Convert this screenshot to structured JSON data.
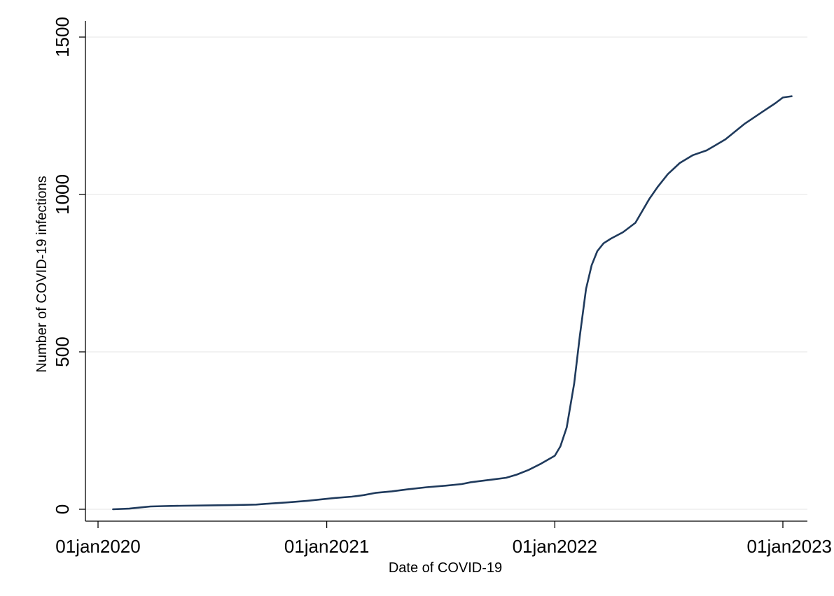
{
  "chart_data": {
    "type": "line",
    "title": "",
    "xlabel": "Date of COVID-19",
    "ylabel": "Number of COVID-19 infections",
    "xlim": [
      "2019-12-01",
      "2023-01-15"
    ],
    "ylim": [
      -40,
      1520
    ],
    "grid": true,
    "legend": "none",
    "x_ticks": [
      "2020-01-01",
      "2021-01-01",
      "2022-01-01",
      "2023-01-01"
    ],
    "x_tick_labels": [
      "01jan2020",
      "01jan2021",
      "01jan2022",
      "01jan2023"
    ],
    "y_ticks": [
      0,
      500,
      1000,
      1500
    ],
    "y_tick_labels": [
      "0",
      "500",
      "1000",
      "1500"
    ],
    "colors": {
      "line": "#1f3a5c",
      "grid": "#eaeaea",
      "axis": "#000000",
      "background": "#ffffff"
    },
    "series": [
      {
        "x": [
          "2020-01-25",
          "2020-02-20",
          "2020-03-10",
          "2020-03-25",
          "2020-04-15",
          "2020-05-15",
          "2020-06-20",
          "2020-08-01",
          "2020-09-10",
          "2020-10-01",
          "2020-11-01",
          "2020-12-01",
          "2021-01-01",
          "2021-01-15",
          "2021-02-10",
          "2021-03-01",
          "2021-03-20",
          "2021-04-15",
          "2021-05-10",
          "2021-06-10",
          "2021-07-10",
          "2021-08-05",
          "2021-08-20",
          "2021-09-25",
          "2021-10-15",
          "2021-11-01",
          "2021-11-20",
          "2021-12-10",
          "2022-01-01",
          "2022-01-10",
          "2022-01-20",
          "2022-02-01",
          "2022-02-10",
          "2022-02-20",
          "2022-03-01",
          "2022-03-10",
          "2022-03-20",
          "2022-04-01",
          "2022-04-20",
          "2022-05-10",
          "2022-06-01",
          "2022-06-15",
          "2022-07-01",
          "2022-07-20",
          "2022-08-10",
          "2022-09-01",
          "2022-10-01",
          "2022-11-01",
          "2022-12-01",
          "2022-12-20",
          "2023-01-01",
          "2023-01-15"
        ],
        "y": [
          0,
          2,
          6,
          9,
          10,
          11,
          12,
          13,
          15,
          18,
          22,
          27,
          33,
          36,
          40,
          45,
          52,
          57,
          63,
          70,
          75,
          80,
          86,
          95,
          100,
          110,
          125,
          145,
          170,
          200,
          260,
          400,
          550,
          700,
          775,
          820,
          845,
          860,
          880,
          910,
          985,
          1025,
          1065,
          1100,
          1125,
          1140,
          1175,
          1225,
          1265,
          1290,
          1308,
          1312
        ]
      }
    ]
  }
}
